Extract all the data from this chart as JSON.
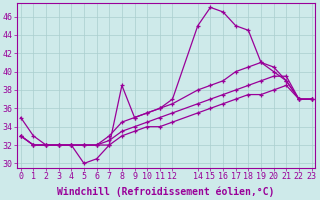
{
  "xlabel": "Windchill (Refroidissement éolien,°C)",
  "background_color": "#ceeaea",
  "grid_color": "#aacece",
  "line_color": "#990099",
  "xlim": [
    -0.3,
    23.3
  ],
  "ylim": [
    29.5,
    47.5
  ],
  "series": [
    {
      "x": [
        0,
        1,
        2,
        3,
        4,
        5,
        6,
        7,
        8,
        9,
        10,
        11,
        12,
        14,
        15,
        16,
        17,
        18,
        19,
        20,
        21,
        22,
        23
      ],
      "y": [
        35.0,
        33.0,
        32.0,
        32.0,
        32.0,
        30.0,
        30.5,
        32.0,
        38.5,
        35.0,
        35.5,
        36.0,
        37.0,
        45.0,
        47.0,
        46.5,
        45.0,
        44.5,
        41.0,
        40.0,
        39.0,
        37.0,
        37.0
      ]
    },
    {
      "x": [
        0,
        1,
        2,
        3,
        4,
        5,
        6,
        7,
        8,
        9,
        10,
        11,
        12,
        14,
        15,
        16,
        17,
        18,
        19,
        20,
        21,
        22,
        23
      ],
      "y": [
        33.0,
        32.0,
        32.0,
        32.0,
        32.0,
        32.0,
        32.0,
        33.0,
        34.5,
        35.0,
        35.5,
        36.0,
        36.5,
        38.0,
        38.5,
        39.0,
        40.0,
        40.5,
        41.0,
        40.5,
        39.0,
        37.0,
        37.0
      ]
    },
    {
      "x": [
        0,
        1,
        2,
        3,
        4,
        5,
        6,
        7,
        8,
        9,
        10,
        11,
        12,
        14,
        15,
        16,
        17,
        18,
        19,
        20,
        21,
        22,
        23
      ],
      "y": [
        33.0,
        32.0,
        32.0,
        32.0,
        32.0,
        32.0,
        32.0,
        32.5,
        33.5,
        34.0,
        34.5,
        35.0,
        35.5,
        36.5,
        37.0,
        37.5,
        38.0,
        38.5,
        39.0,
        39.5,
        39.5,
        37.0,
        37.0
      ]
    },
    {
      "x": [
        0,
        1,
        2,
        3,
        4,
        5,
        6,
        7,
        8,
        9,
        10,
        11,
        12,
        14,
        15,
        16,
        17,
        18,
        19,
        20,
        21,
        22,
        23
      ],
      "y": [
        33.0,
        32.0,
        32.0,
        32.0,
        32.0,
        32.0,
        32.0,
        32.0,
        33.0,
        33.5,
        34.0,
        34.0,
        34.5,
        35.5,
        36.0,
        36.5,
        37.0,
        37.5,
        37.5,
        38.0,
        38.5,
        37.0,
        37.0
      ]
    }
  ],
  "yticks": [
    30,
    32,
    34,
    36,
    38,
    40,
    42,
    44,
    46
  ],
  "xtick_labels": [
    "0",
    "1",
    "2",
    "3",
    "4",
    "5",
    "6",
    "7",
    "8",
    "9",
    "1011",
    "12",
    " ",
    "1415",
    "1617",
    "1819",
    "2021",
    "2223"
  ],
  "font_family": "monospace",
  "tick_fontsize": 6.0,
  "xlabel_fontsize": 7.0
}
